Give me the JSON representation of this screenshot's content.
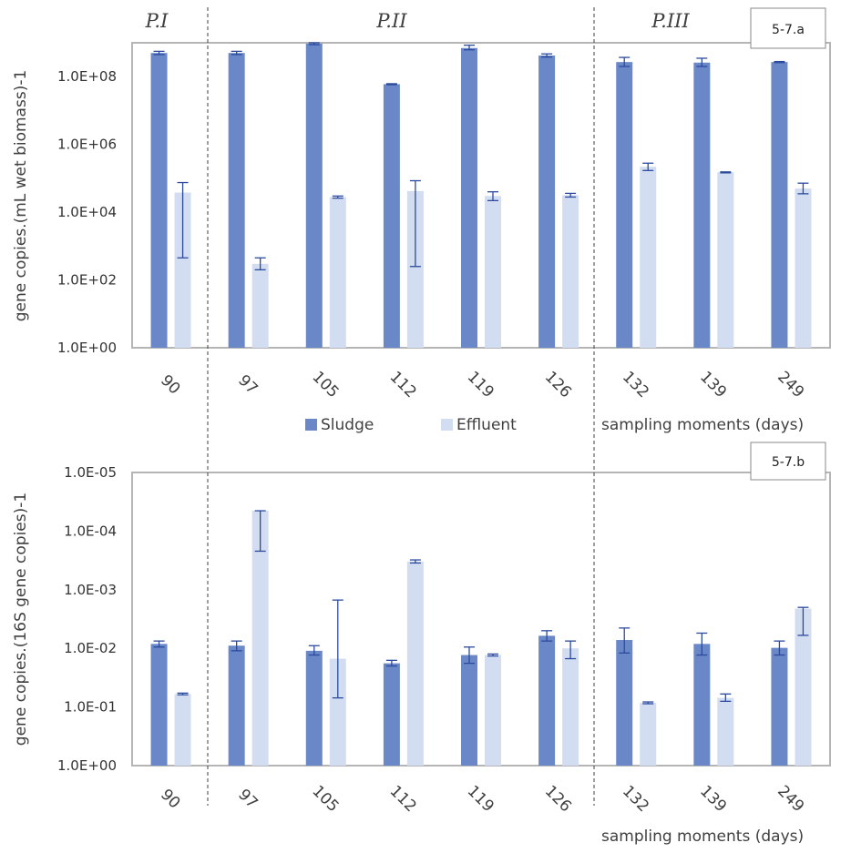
{
  "legend": {
    "sludge_label": "Sludge",
    "effluent_label": "Effluent",
    "sludge_color": "#6a88c8",
    "effluent_color": "#d3ddf1"
  },
  "chart_data": [
    {
      "type": "bar",
      "tag": "5-7.a",
      "ylabel": "gene copies.(mL wet biomass)-1",
      "xlabel": "sampling moments (days)",
      "yscale": "log",
      "ylim": [
        1,
        1000000000
      ],
      "ytick_labels": [
        "1.0E+00",
        "1.0E+02",
        "1.0E+04",
        "1.0E+06",
        "1.0E+08"
      ],
      "ytick_values": [
        1,
        100,
        10000,
        1000000,
        100000000
      ],
      "categories": [
        "90",
        "97",
        "105",
        "112",
        "119",
        "126",
        "132",
        "139",
        "249"
      ],
      "phases": [
        {
          "label": "P.I",
          "from": "90",
          "to": "90"
        },
        {
          "label": "P.II",
          "from": "97",
          "to": "126"
        },
        {
          "label": "P.III",
          "from": "132",
          "to": "249"
        }
      ],
      "series": [
        {
          "name": "Sludge",
          "values": [
            500000000,
            500000000,
            950000000,
            60000000,
            700000000,
            420000000,
            270000000,
            260000000,
            270000000
          ],
          "error_low": [
            450000000,
            450000000,
            880000000,
            58000000,
            620000000,
            380000000,
            200000000,
            200000000,
            260000000
          ],
          "error_high": [
            560000000,
            560000000,
            1000000000,
            62000000,
            850000000,
            470000000,
            370000000,
            350000000,
            280000000
          ]
        },
        {
          "name": "Effluent",
          "values": [
            38000,
            300,
            28000,
            42000,
            30000,
            32000,
            220000,
            150000,
            50000
          ],
          "error_low": [
            450,
            200,
            26000,
            250,
            22000,
            28000,
            170000,
            145000,
            35000
          ],
          "error_high": [
            75000,
            450,
            30000,
            85000,
            40000,
            36000,
            280000,
            155000,
            72000
          ]
        }
      ]
    },
    {
      "type": "bar",
      "tag": "5-7.b",
      "ylabel": "gene copies.(16S gene copies)-1",
      "xlabel": "sampling moments (days)",
      "yscale": "log",
      "ylim": [
        1,
        1e-05
      ],
      "ytick_labels": [
        "1.0E+00",
        "1.0E-01",
        "1.0E-02",
        "1.0E-03",
        "1.0E-04",
        "1.0E-05"
      ],
      "ytick_values": [
        1,
        0.1,
        0.01,
        0.001,
        0.0001,
        1e-05
      ],
      "categories": [
        "90",
        "97",
        "105",
        "112",
        "119",
        "126",
        "132",
        "139",
        "249"
      ],
      "phases": [
        {
          "label": "P.I",
          "from": "90",
          "to": "90"
        },
        {
          "label": "P.II",
          "from": "97",
          "to": "126"
        },
        {
          "label": "P.III",
          "from": "132",
          "to": "249"
        }
      ],
      "series": [
        {
          "name": "Sludge",
          "values": [
            0.0084,
            0.009,
            0.011,
            0.018,
            0.013,
            0.0061,
            0.0072,
            0.0084,
            0.0098
          ],
          "error_low": [
            0.0075,
            0.0075,
            0.009,
            0.016,
            0.0095,
            0.005,
            0.0045,
            0.0055,
            0.0075
          ],
          "error_high": [
            0.0095,
            0.011,
            0.013,
            0.02,
            0.018,
            0.0075,
            0.012,
            0.013,
            0.013
          ]
        },
        {
          "name": "Effluent",
          "values": [
            0.06,
            4.5e-05,
            0.015,
            0.00033,
            0.013,
            0.01,
            0.085,
            0.07,
            0.0021
          ],
          "error_low": [
            0.058,
            4.5e-05,
            0.0015,
            0.00031,
            0.0125,
            0.0075,
            0.082,
            0.06,
            0.002
          ],
          "error_high": [
            0.062,
            0.00022,
            0.07,
            0.00035,
            0.0135,
            0.015,
            0.088,
            0.08,
            0.006
          ]
        }
      ]
    }
  ]
}
